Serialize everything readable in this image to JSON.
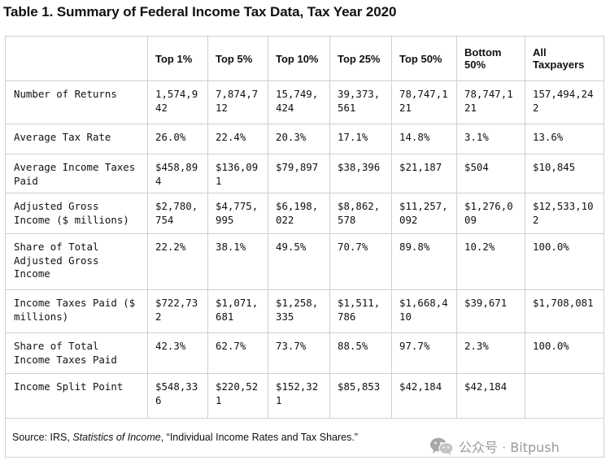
{
  "title": "Table 1. Summary of Federal Income Tax Data, Tax Year 2020",
  "table": {
    "columns": [
      "",
      "Top 1%",
      "Top 5%",
      "Top 10%",
      "Top 25%",
      "Top 50%",
      "Bottom 50%",
      "All Taxpayers"
    ],
    "rows": [
      {
        "label": "Number of Returns",
        "cells": [
          "1,574,942",
          "7,874,712",
          "15,749,424",
          "39,373,561",
          "78,747,121",
          "78,747,121",
          "157,494,242"
        ]
      },
      {
        "label": "Average Tax Rate",
        "cells": [
          "26.0%",
          "22.4%",
          "20.3%",
          "17.1%",
          "14.8%",
          "3.1%",
          "13.6%"
        ]
      },
      {
        "label": "Average Income Taxes Paid",
        "cells": [
          "$458,894",
          "$136,091",
          "$79,897",
          "$38,396",
          "$21,187",
          "$504",
          "$10,845"
        ]
      },
      {
        "label": "Adjusted Gross Income ($ millions)",
        "cells": [
          "$2,780,754",
          "$4,775,995",
          "$6,198,022",
          "$8,862,578",
          "$11,257,092",
          "$1,276,009",
          "$12,533,102"
        ]
      },
      {
        "label": "Share of Total Adjusted Gross Income",
        "cells": [
          "22.2%",
          "38.1%",
          "49.5%",
          "70.7%",
          "89.8%",
          "10.2%",
          "100.0%"
        ]
      },
      {
        "label": "Income Taxes Paid ($ millions)",
        "cells": [
          "$722,732",
          "$1,071,681",
          "$1,258,335",
          "$1,511,786",
          "$1,668,410",
          "$39,671",
          "$1,708,081"
        ]
      },
      {
        "label": "Share of Total Income Taxes Paid",
        "cells": [
          "42.3%",
          "62.7%",
          "73.7%",
          "88.5%",
          "97.7%",
          "2.3%",
          "100.0%"
        ]
      },
      {
        "label": "Income Split Point",
        "cells": [
          "$548,336",
          "$220,521",
          "$152,321",
          "$85,853",
          "$42,184",
          "$42,184",
          ""
        ]
      }
    ]
  },
  "source": {
    "prefix": "Source: IRS, ",
    "publication": "Statistics of Income",
    "suffix": ", “Individual Income Rates and Tax Shares.”"
  },
  "watermark": {
    "text": "公众号 · Bitpush",
    "icon": "wechat-icon"
  }
}
